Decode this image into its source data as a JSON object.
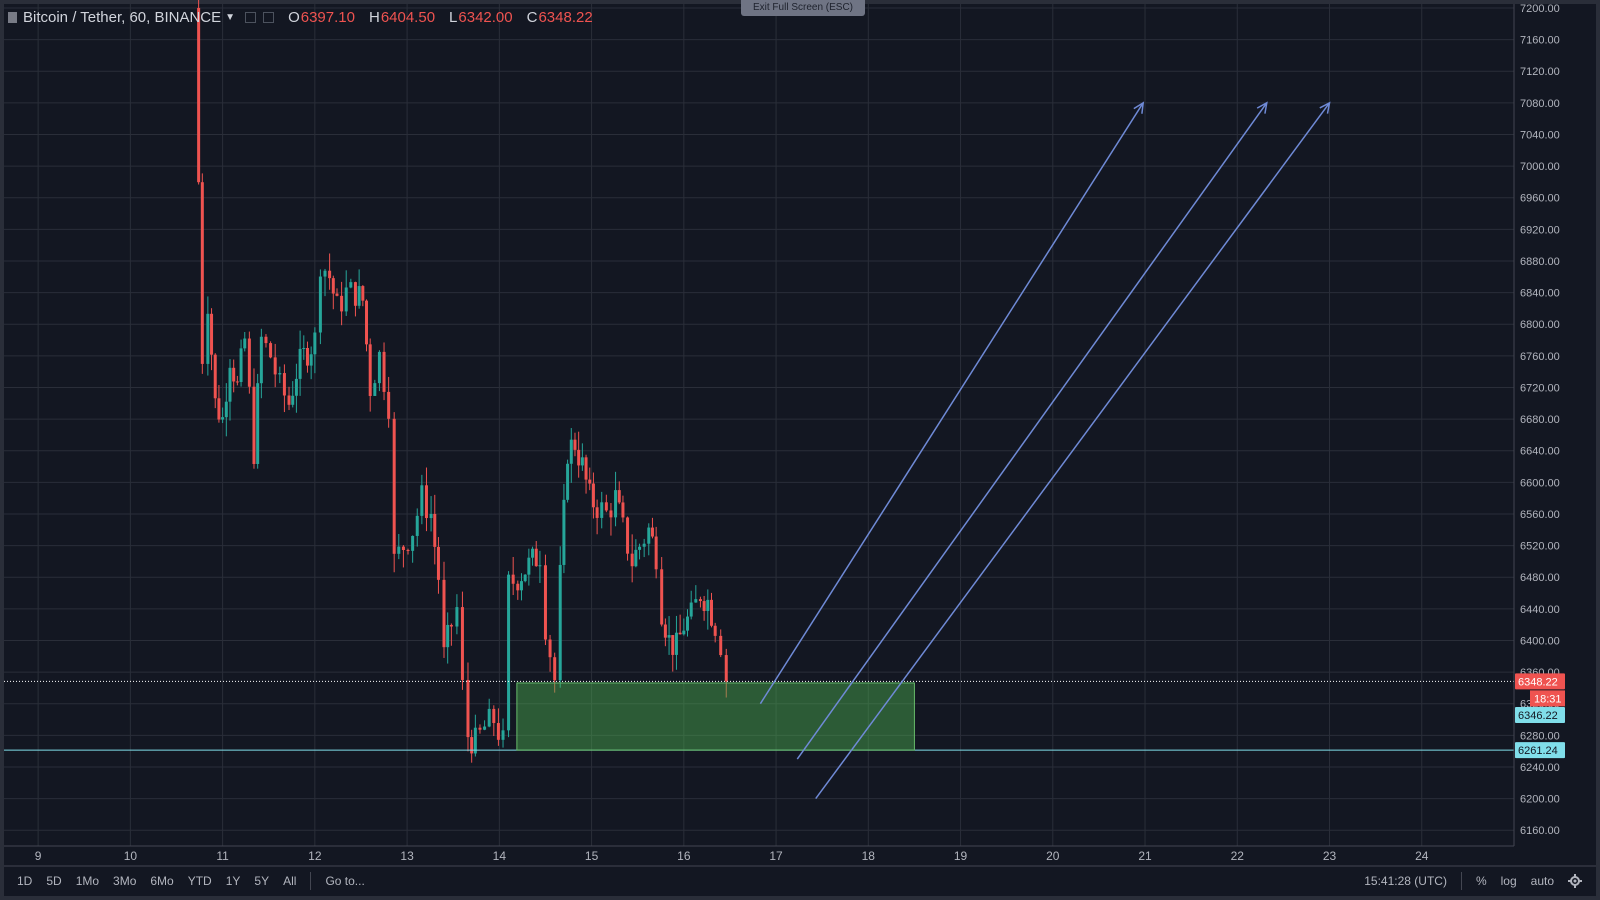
{
  "legend": {
    "symbol": "Bitcoin / Tether, 60, BINANCE",
    "o_label": "O",
    "o_value": "6397.10",
    "h_label": "H",
    "h_value": "6404.50",
    "l_label": "L",
    "l_value": "6342.00",
    "c_label": "C",
    "c_value": "6348.22"
  },
  "exit_fullscreen": "Exit Full Screen (ESC)",
  "bottom_bar": {
    "ranges": [
      "1D",
      "5D",
      "1Mo",
      "3Mo",
      "6Mo",
      "YTD",
      "1Y",
      "5Y",
      "All"
    ],
    "goto": "Go to...",
    "time": "15:41:28 (UTC)",
    "percent": "%",
    "log": "log",
    "auto": "auto"
  },
  "price_badges": {
    "last_price": "6348.22",
    "countdown": "18:31",
    "zone_top": "6346.22",
    "zone_bottom": "6261.24"
  },
  "colors": {
    "background": "#131722",
    "grid": "#2a2e39",
    "up": "#26a69a",
    "down": "#ef5350",
    "zone_fill": "#4caf50",
    "arrow": "#6f8ad6",
    "support_line": "#80deea"
  },
  "chart_data": {
    "type": "candlestick",
    "title": "Bitcoin / Tether, 60, BINANCE",
    "ylim": [
      6140,
      7205
    ],
    "y_ticks": [
      6160,
      6200,
      6240,
      6280,
      6320,
      6360,
      6400,
      6440,
      6480,
      6520,
      6560,
      6600,
      6640,
      6680,
      6720,
      6760,
      6800,
      6840,
      6880,
      6920,
      6960,
      7000,
      7040,
      7080,
      7120,
      7160,
      7200
    ],
    "x_range": [
      8.63,
      25.0
    ],
    "x_ticks": [
      "9",
      "10",
      "11",
      "12",
      "13",
      "14",
      "15",
      "16",
      "17",
      "18",
      "19",
      "20",
      "21",
      "22",
      "23",
      "24"
    ],
    "x_tick_values": [
      9,
      10,
      11,
      12,
      13,
      14,
      15,
      16,
      17,
      18,
      19,
      20,
      21,
      22,
      23,
      24
    ],
    "candle_anchors": [
      [
        10.7,
        7200
      ],
      [
        10.78,
        6760
      ],
      [
        10.84,
        6830
      ],
      [
        10.92,
        6700
      ],
      [
        11.0,
        6680
      ],
      [
        11.08,
        6760
      ],
      [
        11.16,
        6720
      ],
      [
        11.24,
        6780
      ],
      [
        11.34,
        6640
      ],
      [
        11.42,
        6780
      ],
      [
        11.52,
        6760
      ],
      [
        11.62,
        6720
      ],
      [
        11.72,
        6700
      ],
      [
        11.8,
        6740
      ],
      [
        11.88,
        6760
      ],
      [
        12.0,
        6780
      ],
      [
        12.06,
        6880
      ],
      [
        12.16,
        6860
      ],
      [
        12.24,
        6820
      ],
      [
        12.34,
        6840
      ],
      [
        12.44,
        6840
      ],
      [
        12.52,
        6830
      ],
      [
        12.6,
        6720
      ],
      [
        12.7,
        6760
      ],
      [
        12.8,
        6700
      ],
      [
        12.86,
        6500
      ],
      [
        12.96,
        6520
      ],
      [
        13.06,
        6540
      ],
      [
        13.16,
        6580
      ],
      [
        13.26,
        6560
      ],
      [
        13.34,
        6480
      ],
      [
        13.4,
        6380
      ],
      [
        13.48,
        6420
      ],
      [
        13.54,
        6440
      ],
      [
        13.6,
        6340
      ],
      [
        13.66,
        6280
      ],
      [
        13.74,
        6270
      ],
      [
        13.84,
        6290
      ],
      [
        13.94,
        6300
      ],
      [
        14.04,
        6270
      ],
      [
        14.1,
        6470
      ],
      [
        14.2,
        6480
      ],
      [
        14.28,
        6490
      ],
      [
        14.36,
        6500
      ],
      [
        14.44,
        6510
      ],
      [
        14.5,
        6420
      ],
      [
        14.6,
        6350
      ],
      [
        14.66,
        6480
      ],
      [
        14.74,
        6640
      ],
      [
        14.82,
        6650
      ],
      [
        14.9,
        6620
      ],
      [
        14.98,
        6580
      ],
      [
        15.06,
        6570
      ],
      [
        15.16,
        6560
      ],
      [
        15.26,
        6580
      ],
      [
        15.34,
        6540
      ],
      [
        15.44,
        6500
      ],
      [
        15.52,
        6520
      ],
      [
        15.62,
        6540
      ],
      [
        15.7,
        6510
      ],
      [
        15.76,
        6440
      ],
      [
        15.84,
        6400
      ],
      [
        15.92,
        6390
      ],
      [
        16.0,
        6420
      ],
      [
        16.08,
        6430
      ],
      [
        16.18,
        6460
      ],
      [
        16.26,
        6450
      ],
      [
        16.34,
        6420
      ],
      [
        16.4,
        6397
      ],
      [
        16.46,
        6348.22
      ]
    ],
    "last_price": 6348.22,
    "annotations": {
      "zone": {
        "x0": 14.19,
        "x1": 18.5,
        "y0": 6261.24,
        "y1": 6346.22
      },
      "support_line": 6261.24,
      "arrows": [
        {
          "from": [
            16.83,
            6320
          ],
          "to": [
            20.98,
            7080
          ]
        },
        {
          "from": [
            17.23,
            6250
          ],
          "to": [
            22.32,
            7080
          ]
        },
        {
          "from": [
            17.43,
            6200
          ],
          "to": [
            23.0,
            7080
          ]
        }
      ]
    }
  }
}
